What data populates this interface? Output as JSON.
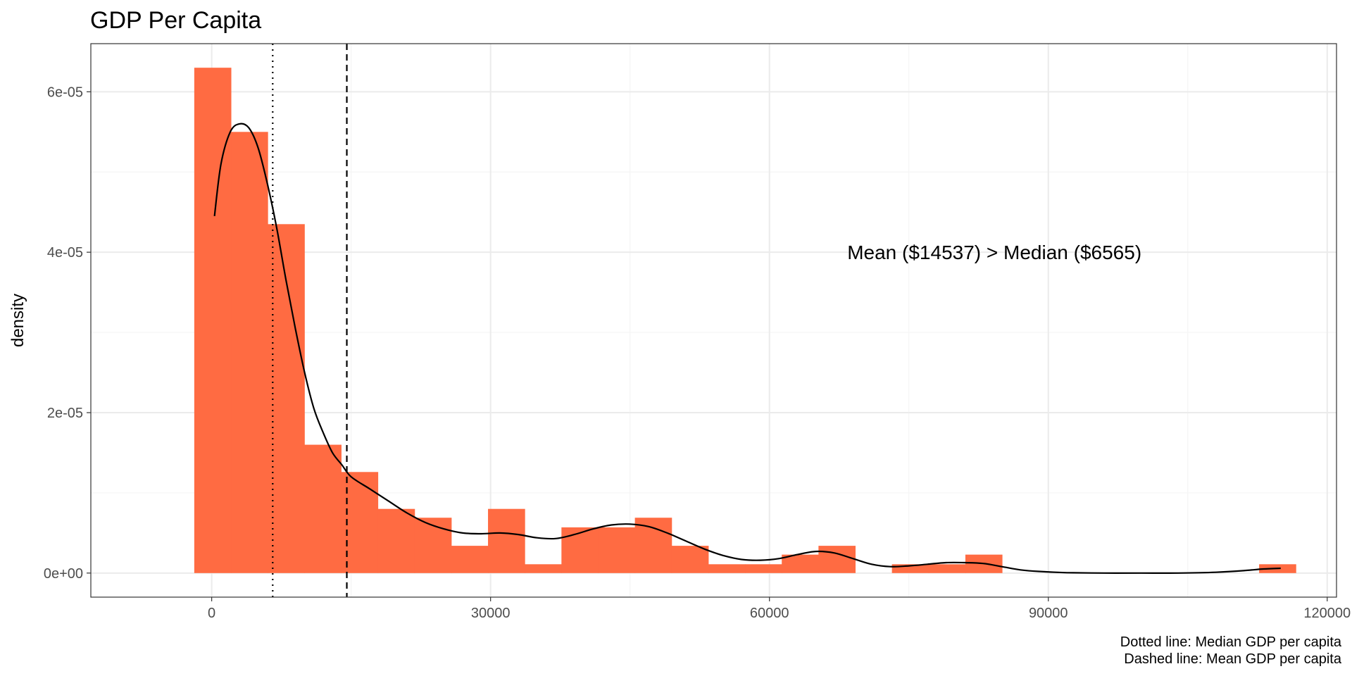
{
  "chart_data": {
    "type": "histogram",
    "title": "GDP Per Capita",
    "xlabel": "",
    "ylabel": "density",
    "xlim": [
      -13000,
      121000
    ],
    "ylim": [
      -3e-06,
      6.6e-05
    ],
    "x_ticks": [
      0,
      30000,
      60000,
      90000,
      120000
    ],
    "x_tick_labels": [
      "0",
      "30000",
      "60000",
      "90000",
      "120000"
    ],
    "y_ticks": [
      0,
      2e-05,
      4e-05,
      6e-05
    ],
    "y_tick_labels": [
      "0e+00",
      "2e-05",
      "4e-05",
      "6e-05"
    ],
    "bin_width": 3950,
    "bins": [
      {
        "x0": -1875,
        "x1": 2075,
        "density": 6.3e-05
      },
      {
        "x0": 2075,
        "x1": 6025,
        "density": 5.5e-05
      },
      {
        "x0": 6025,
        "x1": 9975,
        "density": 4.35e-05
      },
      {
        "x0": 9975,
        "x1": 13925,
        "density": 1.6e-05
      },
      {
        "x0": 13925,
        "x1": 17875,
        "density": 1.26e-05
      },
      {
        "x0": 17875,
        "x1": 21825,
        "density": 8e-06
      },
      {
        "x0": 21825,
        "x1": 25775,
        "density": 6.9e-06
      },
      {
        "x0": 25775,
        "x1": 29725,
        "density": 3.4e-06
      },
      {
        "x0": 29725,
        "x1": 33675,
        "density": 8e-06
      },
      {
        "x0": 33675,
        "x1": 37625,
        "density": 1.1e-06
      },
      {
        "x0": 37625,
        "x1": 41575,
        "density": 5.7e-06
      },
      {
        "x0": 41575,
        "x1": 45525,
        "density": 5.7e-06
      },
      {
        "x0": 45525,
        "x1": 49475,
        "density": 6.9e-06
      },
      {
        "x0": 49475,
        "x1": 53425,
        "density": 3.4e-06
      },
      {
        "x0": 53425,
        "x1": 57375,
        "density": 1.1e-06
      },
      {
        "x0": 57375,
        "x1": 61325,
        "density": 1.1e-06
      },
      {
        "x0": 61325,
        "x1": 65275,
        "density": 2.3e-06
      },
      {
        "x0": 65275,
        "x1": 69225,
        "density": 3.4e-06
      },
      {
        "x0": 73175,
        "x1": 77125,
        "density": 1.1e-06
      },
      {
        "x0": 77125,
        "x1": 81075,
        "density": 1.1e-06
      },
      {
        "x0": 81075,
        "x1": 85025,
        "density": 2.3e-06
      },
      {
        "x0": 112675,
        "x1": 116625,
        "density": 1.1e-06
      }
    ],
    "density_curve": [
      [
        300,
        4.45e-05
      ],
      [
        1000,
        5.1e-05
      ],
      [
        2000,
        5.5e-05
      ],
      [
        3000,
        5.6e-05
      ],
      [
        4000,
        5.55e-05
      ],
      [
        5000,
        5.3e-05
      ],
      [
        6000,
        4.85e-05
      ],
      [
        7000,
        4.3e-05
      ],
      [
        8000,
        3.65e-05
      ],
      [
        9000,
        3.05e-05
      ],
      [
        10000,
        2.5e-05
      ],
      [
        11000,
        2.05e-05
      ],
      [
        12000,
        1.75e-05
      ],
      [
        13000,
        1.5e-05
      ],
      [
        14000,
        1.35e-05
      ],
      [
        15000,
        1.2e-05
      ],
      [
        17000,
        1.05e-05
      ],
      [
        19000,
        9e-06
      ],
      [
        21000,
        7.5e-06
      ],
      [
        23000,
        6.3e-06
      ],
      [
        25000,
        5.5e-06
      ],
      [
        27000,
        5e-06
      ],
      [
        29000,
        4.9e-06
      ],
      [
        31000,
        5e-06
      ],
      [
        33000,
        4.8e-06
      ],
      [
        35000,
        4.4e-06
      ],
      [
        37000,
        4.3e-06
      ],
      [
        39000,
        4.8e-06
      ],
      [
        41000,
        5.5e-06
      ],
      [
        43000,
        6e-06
      ],
      [
        45000,
        6.1e-06
      ],
      [
        47000,
        5.8e-06
      ],
      [
        49000,
        5e-06
      ],
      [
        51000,
        4e-06
      ],
      [
        53000,
        3e-06
      ],
      [
        55000,
        2.2e-06
      ],
      [
        57000,
        1.7e-06
      ],
      [
        59000,
        1.6e-06
      ],
      [
        61000,
        1.8e-06
      ],
      [
        63000,
        2.3e-06
      ],
      [
        65000,
        2.7e-06
      ],
      [
        67000,
        2.5e-06
      ],
      [
        69000,
        1.8e-06
      ],
      [
        71000,
        1.1e-06
      ],
      [
        73000,
        8e-07
      ],
      [
        75000,
        9e-07
      ],
      [
        77000,
        1.1e-06
      ],
      [
        79000,
        1.3e-06
      ],
      [
        81000,
        1.3e-06
      ],
      [
        83000,
        1.2e-06
      ],
      [
        85000,
        8e-07
      ],
      [
        87000,
        4e-07
      ],
      [
        89000,
        2e-07
      ],
      [
        92000,
        5e-08
      ],
      [
        96000,
        0
      ],
      [
        100000,
        0
      ],
      [
        104000,
        0
      ],
      [
        108000,
        1e-07
      ],
      [
        111000,
        3e-07
      ],
      [
        113000,
        5e-07
      ],
      [
        115000,
        6e-07
      ]
    ],
    "reference_lines": [
      {
        "x": 6565,
        "style": "dotted"
      },
      {
        "x": 14537,
        "style": "dashed"
      }
    ],
    "annotation": {
      "text": "Mean ($14537)  >  Median ($6565)",
      "x": 84200,
      "y": 4e-05
    },
    "caption_lines": [
      "Dotted line: Median GDP per capita",
      "Dashed line: Mean GDP per capita"
    ],
    "colors": {
      "bar_fill": "#FF6B42",
      "curve": "#000000",
      "grid_major": "#ebebeb",
      "grid_minor": "#f5f5f5",
      "panel_border": "#333333"
    },
    "grid": true
  }
}
